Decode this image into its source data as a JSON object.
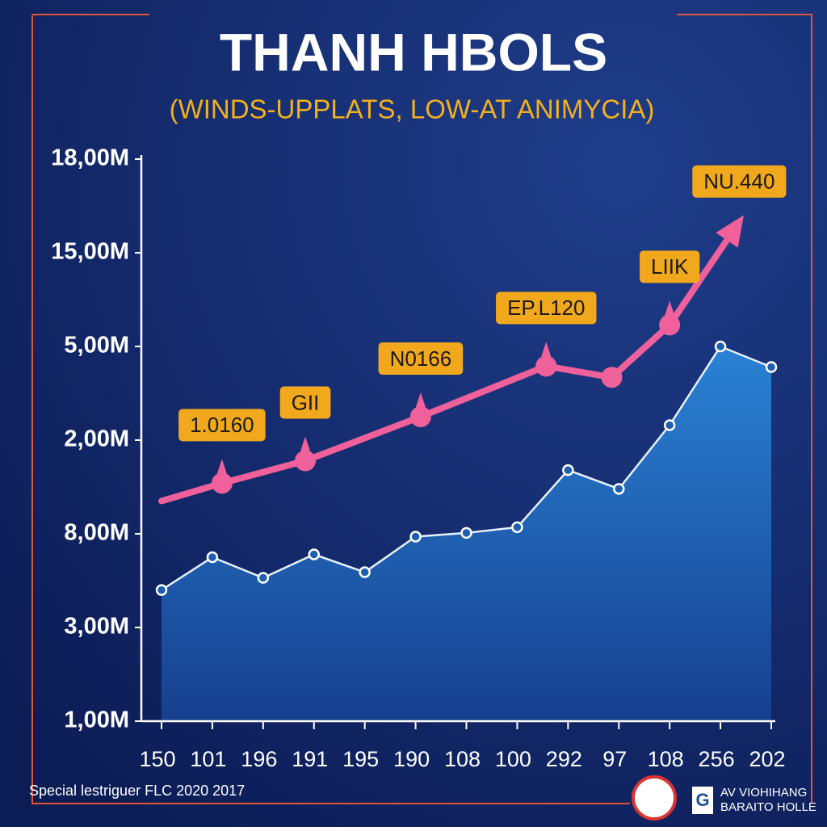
{
  "chart_data": {
    "type": "line-area",
    "title": "THANH HBOLS",
    "subtitle": "(WINDS-UPPLATS, LOW-AT ANIMYCIA)",
    "categories": [
      "150",
      "101",
      "196",
      "191",
      "195",
      "190",
      "108",
      "100",
      "292",
      "97",
      "108",
      "256",
      "202"
    ],
    "ylim": [
      0,
      6
    ],
    "yticks": [
      {
        "value": 6,
        "label": "18,00M"
      },
      {
        "value": 5,
        "label": "15,00M"
      },
      {
        "value": 4,
        "label": "5,00M"
      },
      {
        "value": 3,
        "label": "2,00M"
      },
      {
        "value": 2,
        "label": "8,00M"
      },
      {
        "value": 1,
        "label": "3,00M"
      },
      {
        "value": 0,
        "label": "1,00M"
      }
    ],
    "series": [
      {
        "kind": "area",
        "color": "#1f6fbf",
        "values": [
          1.4,
          1.75,
          1.53,
          1.78,
          1.59,
          1.97,
          2.01,
          2.07,
          2.68,
          2.48,
          3.16,
          4.0,
          3.78
        ]
      },
      {
        "kind": "line",
        "color": "#f0609a",
        "x": [
          0,
          1.19,
          2.83,
          5.1,
          7.57,
          8.86,
          10.0,
          11.37
        ],
        "values": [
          2.35,
          2.54,
          2.78,
          3.25,
          3.79,
          3.67,
          4.23,
          5.33
        ],
        "labels": [
          null,
          "1.0160",
          "GII",
          "N0166",
          "EP.L120",
          null,
          "LIIK",
          "NU.440"
        ]
      }
    ]
  },
  "footer": "Special lestriguer FLC 2020 2017",
  "logo": {
    "letter": "G",
    "line1": "AV VIOHIHANG",
    "line2": "BARAITO HOLLE"
  }
}
